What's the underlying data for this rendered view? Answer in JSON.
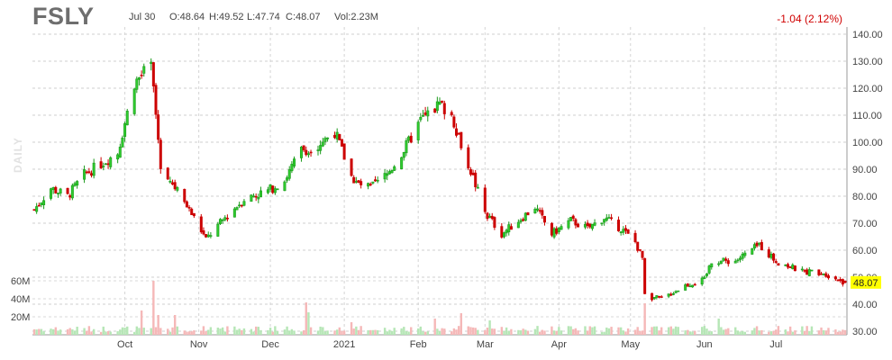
{
  "ticker": "FSLY",
  "daily_label": "DAILY",
  "quote": {
    "date": "Jul 30",
    "open": "O:48.64",
    "high": "H:49.52",
    "low": "L:47.74",
    "close": "C:48.07",
    "volume": "Vol:2.23M",
    "change": "-1.04 (2.12%)",
    "last_price": "48.07"
  },
  "colors": {
    "up": "#1a9a1a",
    "up_fill": "#2ecc2e",
    "down": "#cc0000",
    "vol_up": "#b6e6b6",
    "vol_down": "#f5b8b8",
    "price_tag": "#ffff00",
    "change": "#d00000"
  },
  "chart_data": {
    "type": "candlestick",
    "price_axis": {
      "ticks": [
        "140.00",
        "130.00",
        "120.00",
        "110.00",
        "100.00",
        "90.00",
        "80.00",
        "70.00",
        "60.00",
        "50.00",
        "40.00",
        "30.00"
      ],
      "range": [
        30,
        140
      ]
    },
    "volume_axis": {
      "ticks": [
        "60M",
        "40M",
        "20M"
      ],
      "range": [
        0,
        66
      ]
    },
    "x_labels": [
      "Oct",
      "Nov",
      "Dec",
      "2021",
      "Feb",
      "Mar",
      "Apr",
      "May",
      "Jun",
      "Jul"
    ],
    "price_keyframes": [
      {
        "date": "2020-08-24",
        "price": 75
      },
      {
        "date": "2020-08-31",
        "price": 83
      },
      {
        "date": "2020-09-07",
        "price": 80
      },
      {
        "date": "2020-09-14",
        "price": 88
      },
      {
        "date": "2020-09-21",
        "price": 92
      },
      {
        "date": "2020-09-28",
        "price": 96
      },
      {
        "date": "2020-10-05",
        "price": 122
      },
      {
        "date": "2020-10-12",
        "price": 128
      },
      {
        "date": "2020-10-16",
        "price": 92
      },
      {
        "date": "2020-10-23",
        "price": 82
      },
      {
        "date": "2020-10-30",
        "price": 72
      },
      {
        "date": "2020-11-04",
        "price": 64
      },
      {
        "date": "2020-11-12",
        "price": 72
      },
      {
        "date": "2020-11-20",
        "price": 79
      },
      {
        "date": "2020-11-30",
        "price": 82
      },
      {
        "date": "2020-12-07",
        "price": 86
      },
      {
        "date": "2020-12-14",
        "price": 97
      },
      {
        "date": "2020-12-21",
        "price": 99
      },
      {
        "date": "2020-12-28",
        "price": 104
      },
      {
        "date": "2021-01-05",
        "price": 85
      },
      {
        "date": "2021-01-12",
        "price": 83
      },
      {
        "date": "2021-01-19",
        "price": 88
      },
      {
        "date": "2021-01-26",
        "price": 97
      },
      {
        "date": "2021-02-02",
        "price": 108
      },
      {
        "date": "2021-02-10",
        "price": 114
      },
      {
        "date": "2021-02-15",
        "price": 110
      },
      {
        "date": "2021-02-22",
        "price": 92
      },
      {
        "date": "2021-03-01",
        "price": 74
      },
      {
        "date": "2021-03-08",
        "price": 66
      },
      {
        "date": "2021-03-15",
        "price": 71
      },
      {
        "date": "2021-03-22",
        "price": 76
      },
      {
        "date": "2021-03-29",
        "price": 66
      },
      {
        "date": "2021-04-06",
        "price": 71
      },
      {
        "date": "2021-04-13",
        "price": 68
      },
      {
        "date": "2021-04-20",
        "price": 72
      },
      {
        "date": "2021-04-27",
        "price": 68
      },
      {
        "date": "2021-05-03",
        "price": 63
      },
      {
        "date": "2021-05-06",
        "price": 57
      },
      {
        "date": "2021-05-07",
        "price": 43
      },
      {
        "date": "2021-05-14",
        "price": 42
      },
      {
        "date": "2021-05-24",
        "price": 47
      },
      {
        "date": "2021-06-01",
        "price": 49
      },
      {
        "date": "2021-06-04",
        "price": 56
      },
      {
        "date": "2021-06-14",
        "price": 56
      },
      {
        "date": "2021-06-24",
        "price": 62
      },
      {
        "date": "2021-07-01",
        "price": 56
      },
      {
        "date": "2021-07-12",
        "price": 52
      },
      {
        "date": "2021-07-20",
        "price": 52
      },
      {
        "date": "2021-07-30",
        "price": 48.07
      }
    ],
    "volume_spikes": [
      {
        "date": "2020-10-13",
        "value": 60
      },
      {
        "date": "2020-10-15",
        "value": 22
      },
      {
        "date": "2020-10-08",
        "value": 27
      },
      {
        "date": "2020-10-22",
        "value": 22
      },
      {
        "date": "2020-12-16",
        "value": 36
      },
      {
        "date": "2020-12-17",
        "value": 25
      },
      {
        "date": "2021-02-19",
        "value": 24
      },
      {
        "date": "2021-02-08",
        "value": 18
      },
      {
        "date": "2021-05-07",
        "value": 35
      },
      {
        "date": "2021-06-07",
        "value": 18
      },
      {
        "date": "2021-03-03",
        "value": 16
      },
      {
        "date": "2021-01-04",
        "value": 14
      }
    ]
  }
}
